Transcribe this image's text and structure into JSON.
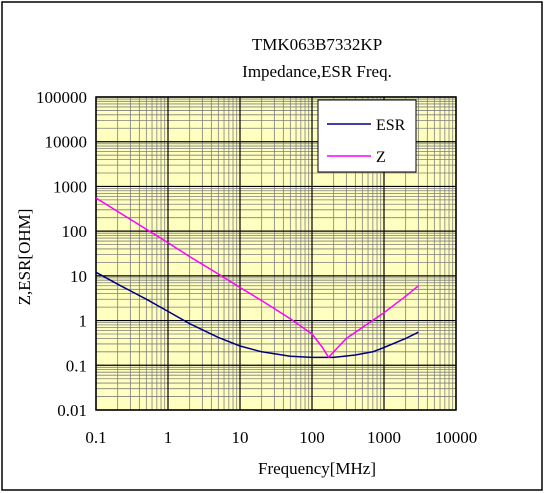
{
  "chart_data": {
    "type": "line",
    "title": "TMK063B7332KP",
    "subtitle": "Impedance,ESR Freq.",
    "xlabel": "Frequency[MHz]",
    "ylabel": "Z,ESR[OHM]",
    "xscale": "log",
    "yscale": "log",
    "xlim": [
      0.1,
      10000
    ],
    "ylim": [
      0.01,
      100000
    ],
    "x_ticks": [
      "0.1",
      "1",
      "10",
      "100",
      "1000",
      "10000"
    ],
    "y_ticks": [
      "0.01",
      "0.1",
      "1",
      "10",
      "100",
      "1000",
      "10000",
      "100000"
    ],
    "legend_position": "top-right",
    "grid": true,
    "plot_background": "#ffffc0",
    "series": [
      {
        "name": "ESR",
        "color": "#000080",
        "points": [
          [
            0.1,
            12
          ],
          [
            0.2,
            6.5
          ],
          [
            0.5,
            3
          ],
          [
            1,
            1.6
          ],
          [
            2,
            0.85
          ],
          [
            5,
            0.42
          ],
          [
            10,
            0.27
          ],
          [
            20,
            0.2
          ],
          [
            50,
            0.16
          ],
          [
            100,
            0.15
          ],
          [
            200,
            0.15
          ],
          [
            400,
            0.17
          ],
          [
            700,
            0.2
          ],
          [
            1000,
            0.25
          ],
          [
            2000,
            0.4
          ],
          [
            3000,
            0.55
          ]
        ]
      },
      {
        "name": "Z",
        "color": "#ff00ff",
        "points": [
          [
            0.1,
            550
          ],
          [
            0.2,
            275
          ],
          [
            0.5,
            110
          ],
          [
            1,
            55
          ],
          [
            2,
            27
          ],
          [
            5,
            11
          ],
          [
            10,
            5.5
          ],
          [
            20,
            2.8
          ],
          [
            50,
            1.1
          ],
          [
            100,
            0.5
          ],
          [
            140,
            0.25
          ],
          [
            170,
            0.15
          ],
          [
            200,
            0.2
          ],
          [
            300,
            0.4
          ],
          [
            500,
            0.7
          ],
          [
            1000,
            1.5
          ],
          [
            2000,
            3.5
          ],
          [
            3000,
            6
          ]
        ]
      }
    ]
  }
}
